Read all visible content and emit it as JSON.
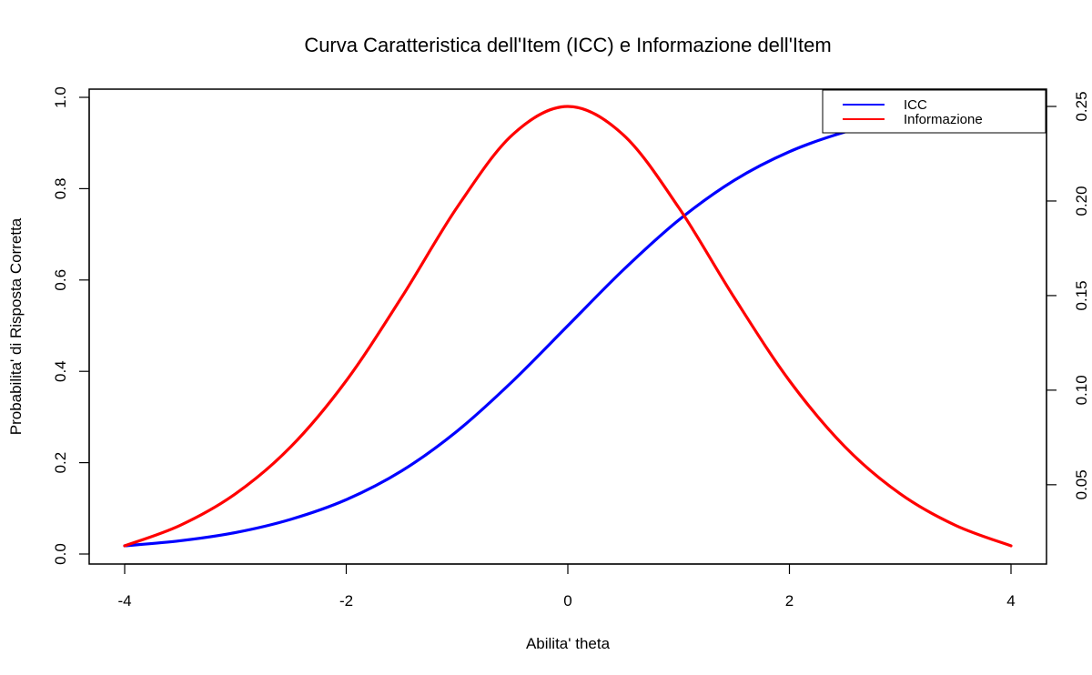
{
  "chart_data": {
    "type": "line",
    "title": "Curva Caratteristica dell'Item (ICC) e Informazione dell'Item",
    "xlabel": "Abilita' theta",
    "ylabel": "Probabilita' di Risposta Corretta",
    "y2label": "",
    "xlim": [
      -4,
      4
    ],
    "ylim": [
      0,
      1
    ],
    "y2lim": [
      0.0177,
      0.25
    ],
    "x_ticks": [
      -4,
      -2,
      0,
      2,
      4
    ],
    "x_tick_labels": [
      "-4",
      "-2",
      "0",
      "2",
      "4"
    ],
    "y_ticks": [
      0,
      0.2,
      0.4,
      0.6,
      0.8,
      1.0
    ],
    "y_tick_labels": [
      "0.0",
      "0.2",
      "0.4",
      "0.6",
      "0.8",
      "1.0"
    ],
    "y2_ticks": [
      0.05,
      0.1,
      0.15,
      0.2,
      0.25
    ],
    "y2_tick_labels": [
      "0.05",
      "0.10",
      "0.15",
      "0.20",
      "0.25"
    ],
    "grid": false,
    "legend_position": "top-right",
    "x": [
      -4,
      -3.5,
      -3,
      -2.5,
      -2,
      -1.5,
      -1,
      -0.5,
      0,
      0.5,
      1,
      1.5,
      2,
      2.5,
      3,
      3.5,
      4
    ],
    "series": [
      {
        "name": "ICC",
        "axis": "left",
        "color": "#0000ff",
        "values": [
          0.018,
          0.029,
          0.047,
          0.076,
          0.119,
          0.182,
          0.269,
          0.378,
          0.5,
          0.622,
          0.731,
          0.818,
          0.881,
          0.924,
          0.953,
          0.971,
          0.982
        ]
      },
      {
        "name": "Informazione",
        "axis": "right",
        "color": "#ff0000",
        "values": [
          0.0177,
          0.0285,
          0.0452,
          0.0701,
          0.105,
          0.1491,
          0.1966,
          0.235,
          0.25,
          0.235,
          0.1966,
          0.1491,
          0.105,
          0.0701,
          0.0452,
          0.0285,
          0.0177
        ]
      }
    ]
  }
}
